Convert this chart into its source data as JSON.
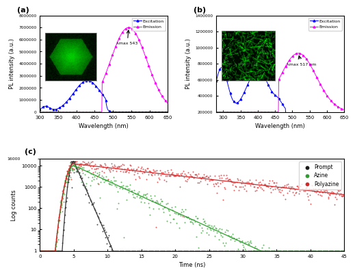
{
  "panel_a": {
    "title": "(a)",
    "xlabel": "Wavelength (nm)",
    "ylabel": "PL intensity (a.u.)",
    "xlim": [
      300,
      650
    ],
    "ylim": [
      0,
      8000000
    ],
    "yticks": [
      0,
      1000000,
      2000000,
      3000000,
      4000000,
      5000000,
      6000000,
      7000000,
      8000000
    ],
    "xticks": [
      300,
      350,
      400,
      450,
      500,
      550,
      600,
      650
    ],
    "excitation_color": "#0000FF",
    "emission_color": "#FF00FF",
    "annotation": "λmax 543",
    "excitation_peak": 430,
    "emission_peak": 543
  },
  "panel_b": {
    "title": "(b)",
    "xlabel": "Wavelength (nm)",
    "ylabel": "PL intensity (a.u.)",
    "xlim": [
      280,
      650
    ],
    "ylim": [
      200000,
      1400000
    ],
    "yticks": [
      200000,
      400000,
      600000,
      800000,
      1000000,
      1200000,
      1400000
    ],
    "xticks": [
      300,
      350,
      400,
      450,
      500,
      550,
      600,
      650
    ],
    "excitation_color": "#0000FF",
    "emission_color": "#FF00FF",
    "annotation": "λmax 517 nm",
    "excitation_peak": 400,
    "emission_peak": 517
  },
  "panel_c": {
    "title": "(c)",
    "xlabel": "Time (ns)",
    "ylabel": "Log counts",
    "xlim": [
      0,
      45
    ],
    "ylim_min": 1,
    "ylim_max": 20000,
    "ytop_label": "16000",
    "xticks": [
      0,
      5,
      10,
      15,
      20,
      25,
      30,
      35,
      40,
      45
    ],
    "prompt_color": "#1a1a1a",
    "azine_color": "#2ca02c",
    "polyazine_color": "#d62728",
    "fit_color_prompt": "#333333",
    "fit_color_azine": "#2ca02c",
    "fit_color_poly": "#d62728",
    "legend_labels": [
      "Prompt",
      "Azine",
      "Polyazine"
    ]
  }
}
